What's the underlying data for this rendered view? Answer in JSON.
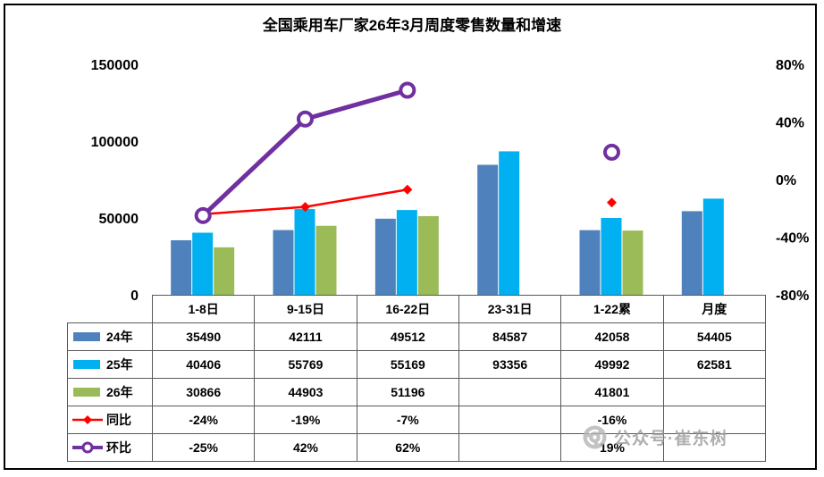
{
  "title": "全国乘用车厂家26年3月周度零售数量和增速",
  "watermark": {
    "icon": "aperture-logo-icon",
    "text": "公众号·崔东树"
  },
  "chart_data": {
    "type": "combo-bar-line",
    "title": "全国乘用车厂家26年3月周度零售数量和增速",
    "categories": [
      "1-8日",
      "9-15日",
      "16-22日",
      "23-31日",
      "1-22累",
      "月度"
    ],
    "bar_series": [
      {
        "name": "24年",
        "color": "#4F81BD",
        "values": [
          35490,
          42111,
          49512,
          84587,
          42058,
          54405
        ]
      },
      {
        "name": "25年",
        "color": "#00B0F0",
        "values": [
          40406,
          55769,
          55169,
          93356,
          49992,
          62581
        ]
      },
      {
        "name": "26年",
        "color": "#9BBB59",
        "values": [
          30866,
          44903,
          51196,
          null,
          41801,
          null
        ]
      }
    ],
    "line_series": [
      {
        "name": "同比",
        "color": "#FF0000",
        "marker": "diamond",
        "axis": "right",
        "values_pct": [
          -24,
          -19,
          -7,
          null,
          -16,
          null
        ]
      },
      {
        "name": "环比",
        "color": "#7030A0",
        "marker": "circle",
        "axis": "right",
        "values_pct": [
          -25,
          42,
          62,
          null,
          19,
          null
        ]
      }
    ],
    "left_axis": {
      "min": 0,
      "max": 150000,
      "ticks": [
        "0",
        "50000",
        "100000",
        "150000"
      ]
    },
    "right_axis": {
      "min": -80,
      "max": 80,
      "ticks": [
        "-80%",
        "-40%",
        "0%",
        "40%",
        "80%"
      ]
    },
    "grid": false,
    "legend_position": "table-left"
  },
  "table": {
    "rows": [
      {
        "label": "24年",
        "swatch": "bar",
        "color": "#4F81BD",
        "cells": [
          "35490",
          "42111",
          "49512",
          "84587",
          "42058",
          "54405"
        ]
      },
      {
        "label": "25年",
        "swatch": "bar",
        "color": "#00B0F0",
        "cells": [
          "40406",
          "55769",
          "55169",
          "93356",
          "49992",
          "62581"
        ]
      },
      {
        "label": "26年",
        "swatch": "bar",
        "color": "#9BBB59",
        "cells": [
          "30866",
          "44903",
          "51196",
          "",
          "41801",
          ""
        ]
      },
      {
        "label": "同比",
        "swatch": "line-diamond",
        "color": "#FF0000",
        "cells": [
          "-24%",
          "-19%",
          "-7%",
          "",
          "-16%",
          ""
        ]
      },
      {
        "label": "环比",
        "swatch": "line-circle",
        "color": "#7030A0",
        "cells": [
          "-25%",
          "42%",
          "62%",
          "",
          "19%",
          ""
        ]
      }
    ]
  }
}
